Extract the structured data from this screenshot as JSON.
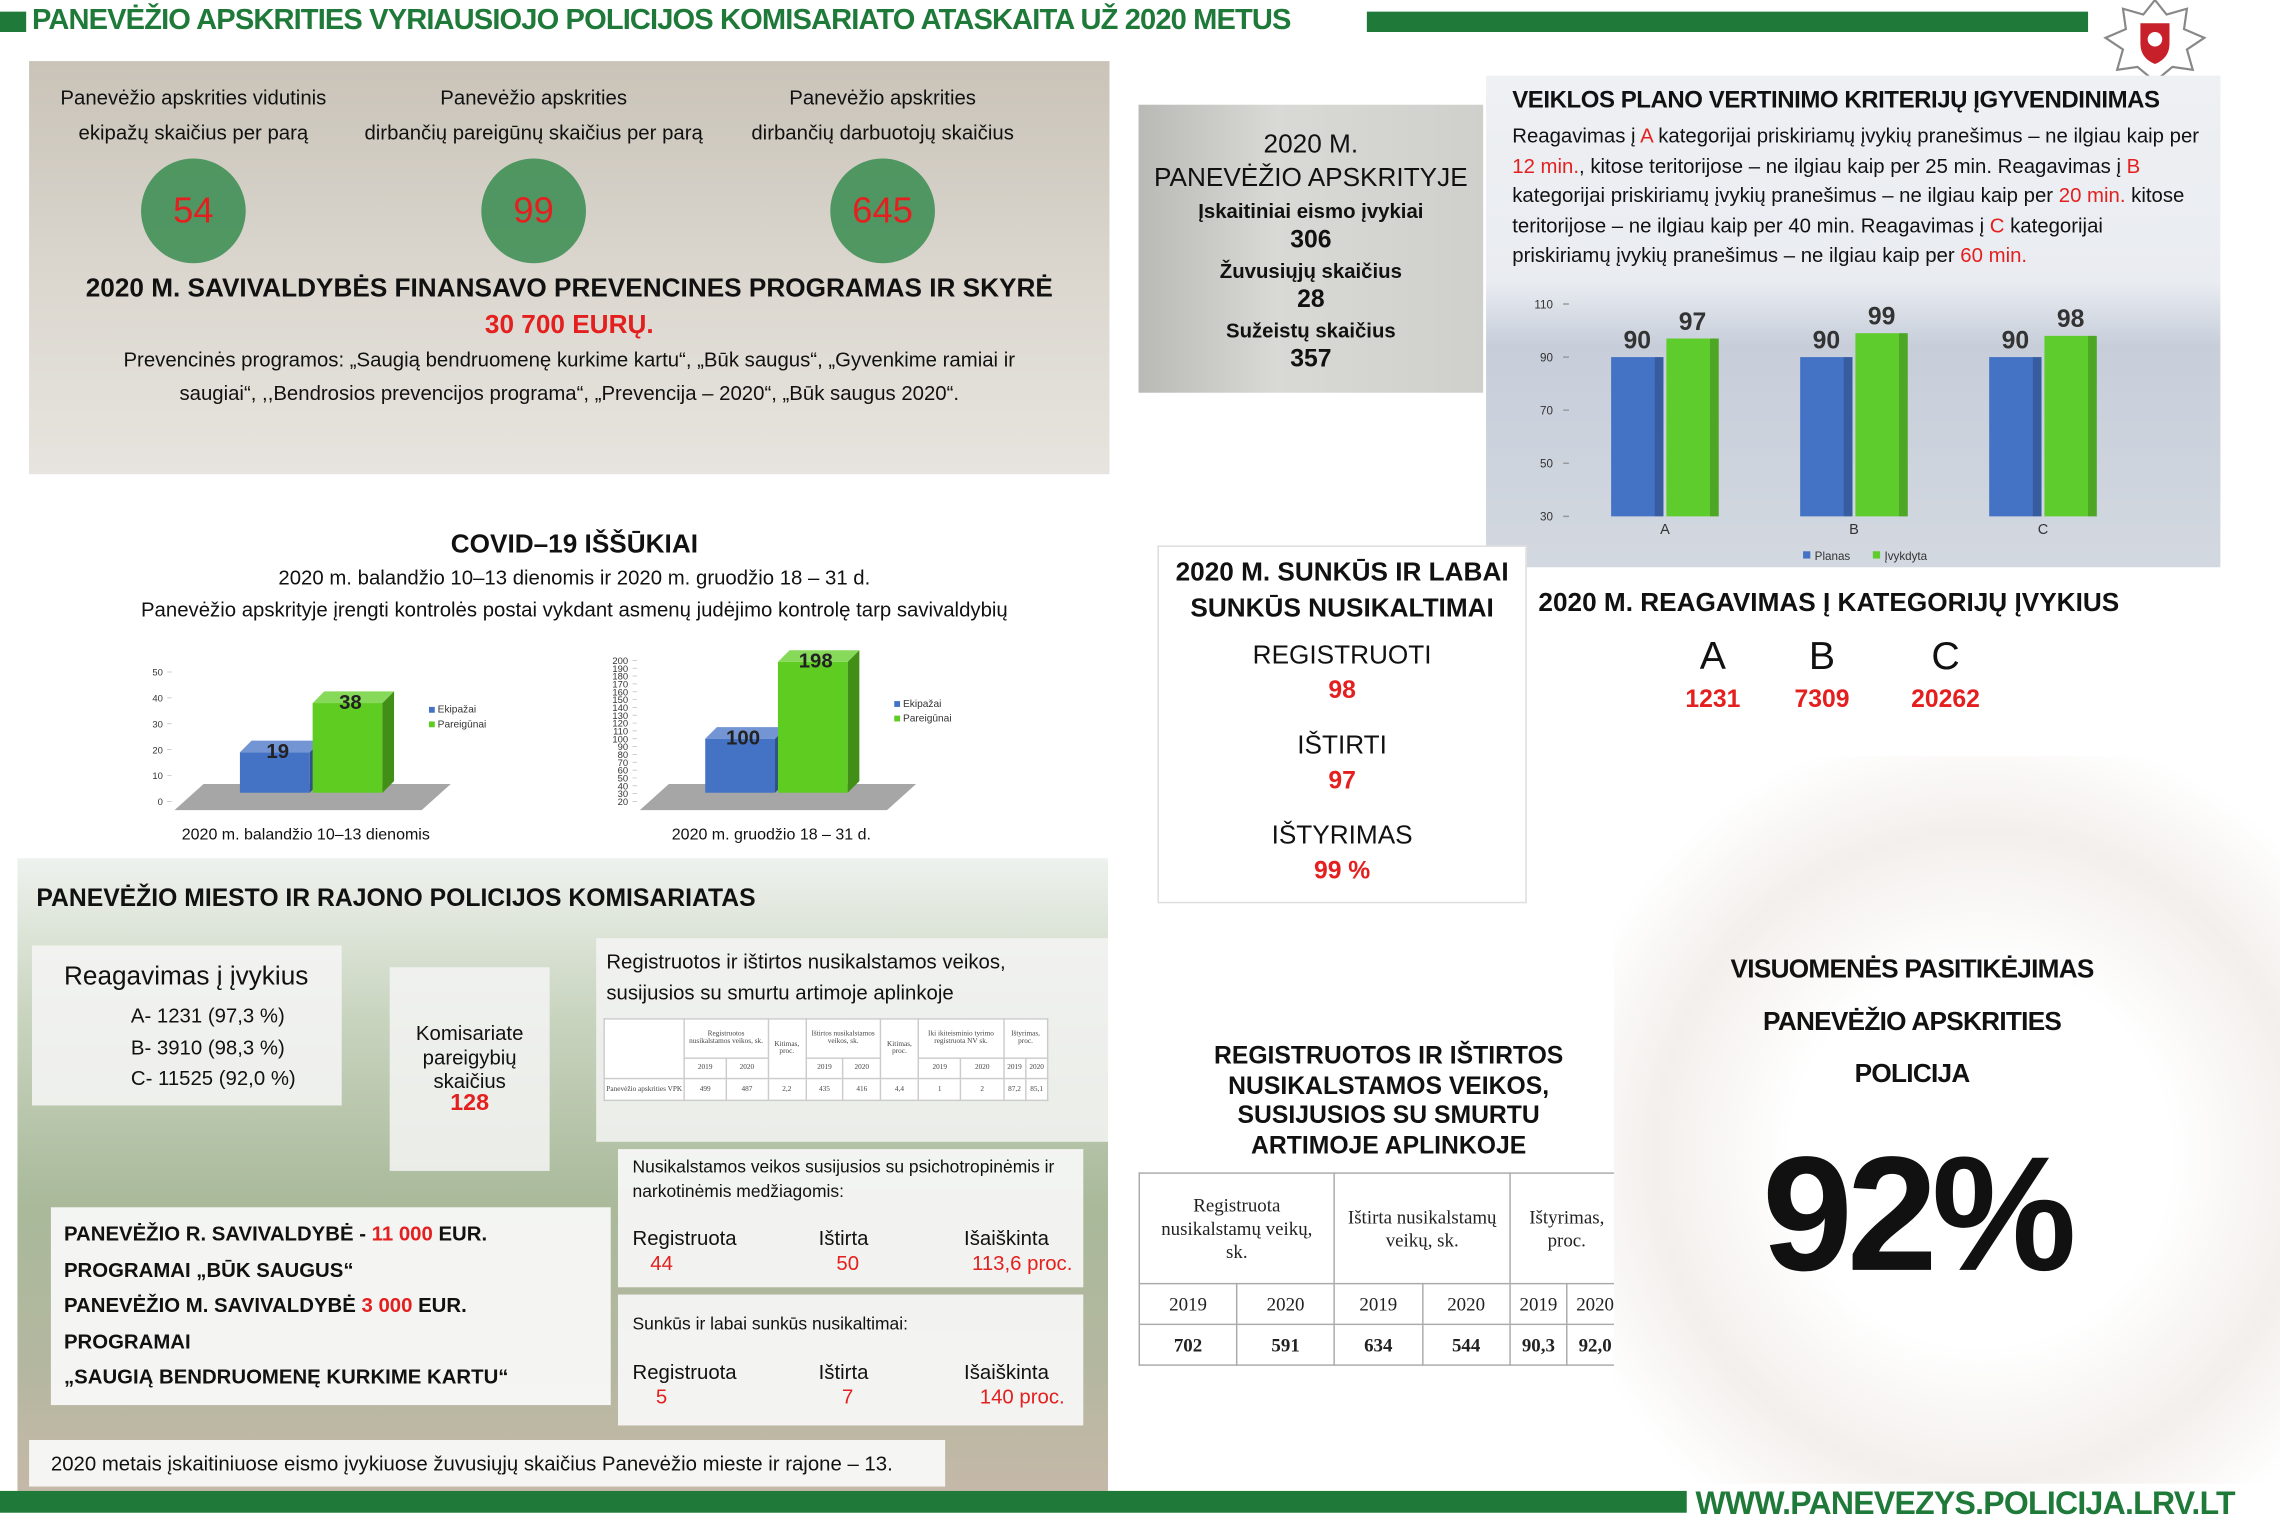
{
  "header": {
    "title": "PANEVĖŽIO APSKRITIES VYRIAUSIOJO POLICIJOS KOMISARIATO ATASKAITA UŽ 2020 METUS"
  },
  "stats": [
    {
      "label_lines": [
        "Panevėžio apskrities vidutinis",
        "ekipažų skaičius per parą"
      ],
      "value": "54"
    },
    {
      "label_lines": [
        "Panevėžio apskrities",
        "dirbančių pareigūnų skaičius per parą"
      ],
      "value": "99"
    },
    {
      "label_lines": [
        "Panevėžio apskrities",
        "dirbančių darbuotojų skaičius"
      ],
      "value": "645"
    }
  ],
  "funding": {
    "title": "2020 M. SAVIVALDYBĖS FINANSAVO PREVENCINES PROGRAMAS IR SKYRĖ",
    "amount": "30 700 EURŲ.",
    "programs": "Prevencinės programos: „Saugią bendruomenę kurkime kartu“, „Būk saugus“, „Gyvenkime ramiai ir saugiai“, ,,Bendrosios prevencijos programa“,  „Prevencija – 2020“, „Būk saugus 2020“."
  },
  "traffic": {
    "title_lines": [
      "2020 M.",
      "PANEVĖŽIO APSKRITYJE"
    ],
    "items": [
      {
        "label": "Įskaitiniai eismo įvykiai",
        "value": "306"
      },
      {
        "label": "Žuvusiųjų skaičius",
        "value": "28"
      },
      {
        "label": "Sužeistų skaičius",
        "value": "357"
      }
    ]
  },
  "criteria": {
    "title": "VEIKLOS PLANO VERTINIMO KRITERIJŲ ĮGYVENDINIMAS",
    "text": [
      {
        "text": "Reagavimas į "
      },
      {
        "text": "A",
        "highlight": true
      },
      {
        "text": " kategorijai priskiriamų įvykių pranešimus – ne ilgiau kaip per "
      },
      {
        "text": "12 min.",
        "highlight": true
      },
      {
        "text": ", kitose teritorijose – ne ilgiau kaip per 25 min. Reagavimas į "
      },
      {
        "text": "B",
        "highlight": true
      },
      {
        "text": " kategorijai priskiriamų įvykių pranešimus – ne ilgiau kaip per "
      },
      {
        "text": "20 min.",
        "highlight": true
      },
      {
        "text": " kitose teritorijose – ne ilgiau kaip per 40 min. Reagavimas į "
      },
      {
        "text": "C",
        "highlight": true
      },
      {
        "text": " kategorijai priskiriamų įvykių pranešimus – ne ilgiau kaip per "
      },
      {
        "text": "60 min.",
        "highlight": true
      }
    ],
    "chart": {
      "type": "bar",
      "categories": [
        "A",
        "B",
        "C"
      ],
      "series": [
        {
          "name": "Planas",
          "color": "#4472c4",
          "values": [
            90,
            90,
            90
          ]
        },
        {
          "name": "Įvykdyta",
          "color": "#5fcc2e",
          "values": [
            97,
            99,
            98
          ]
        }
      ],
      "ylim": [
        30,
        110
      ],
      "yticks": [
        30,
        50,
        70,
        90,
        110
      ]
    }
  },
  "reaction": {
    "title": "2020 M. REAGAVIMAS Į KATEGORIJŲ ĮVYKIUS",
    "items": [
      {
        "label": "A",
        "value": "1231"
      },
      {
        "label": "B",
        "value": "7309"
      },
      {
        "label": "C",
        "value": "20262"
      }
    ]
  },
  "serious": {
    "title_lines": [
      "2020 M. SUNKŪS IR LABAI",
      "SUNKŪS NUSIKALTIMAI"
    ],
    "items": [
      {
        "label": "REGISTRUOTI",
        "value": "98"
      },
      {
        "label": "IŠTIRTI",
        "value": "97"
      },
      {
        "label": "IŠTYRIMAS",
        "value": "99 %"
      }
    ]
  },
  "covid": {
    "title": "COVID–19 IŠŠŪKIAI",
    "subtitle_lines": [
      "2020 m. balandžio 10–13 dienomis ir 2020 m. gruodžio 18 – 31 d.",
      "Panevėžio apskrityje įrengti kontrolės postai vykdant asmenų judėjimo kontrolę tarp savivaldybių"
    ],
    "charts": [
      {
        "type": "bar",
        "three_d": true,
        "categories": [
          null
        ],
        "series": [
          {
            "name": "Ekipažai",
            "color": "#4472c4",
            "values": [
              19
            ]
          },
          {
            "name": "Pareigūnai",
            "color": "#5fcc22",
            "values": [
              38
            ]
          }
        ],
        "ylim": [
          0,
          50
        ],
        "yticks": [
          0,
          10,
          20,
          30,
          40,
          50
        ],
        "caption": "2020 m. balandžio 10–13 dienomis"
      },
      {
        "type": "bar",
        "three_d": true,
        "categories": [
          null
        ],
        "series": [
          {
            "name": "Ekipažai",
            "color": "#4472c4",
            "values": [
              100
            ]
          },
          {
            "name": "Pareigūnai",
            "color": "#5fcc22",
            "values": [
              198
            ]
          }
        ],
        "ylim": [
          20,
          200
        ],
        "yticks": [
          20,
          30,
          40,
          50,
          60,
          70,
          80,
          90,
          100,
          110,
          120,
          130,
          140,
          150,
          160,
          170,
          180,
          190,
          200
        ],
        "caption": "2020 m. gruodžio 18 – 31 d."
      }
    ]
  },
  "district": {
    "title": "PANEVĖŽIO MIESTO IR RAJONO POLICIJOS KOMISARIATAS",
    "response": {
      "title": "Reagavimas į įvykius",
      "lines": [
        "A- 1231 (97,3 %)",
        "B- 3910 (98,3 %)",
        "C- 11525 (92,0 %)"
      ]
    },
    "staff": {
      "label": "Komisariate pareigybių skaičius",
      "value": "128"
    },
    "violence": {
      "title": "Registruotos ir ištirtos nusikalstamos veikos, susijusios su smurtu artimoje aplinkoje",
      "table": {
        "headers": [
          "Registruotos nusikalstamos veikos, sk.",
          "Kitimas, proc.",
          "Ištirtos nusikalstamos veikos, sk.",
          "Kitimas, proc.",
          "Iki ikiteisminio tyrimo registruota NV sk.",
          "Ištyrimas, proc."
        ],
        "years": [
          "2019",
          "2020",
          "2019",
          "2020",
          "2019",
          "2020",
          "2019",
          "2020"
        ],
        "row_label": "Panevėžio apskrities VPK",
        "row": [
          "499",
          "487",
          "2,2",
          "435",
          "416",
          "4,4",
          "1",
          "2",
          "87,2",
          "85,1"
        ]
      }
    },
    "drugs": {
      "title": "Nusikalstamos veikos susijusios su psichotropinėmis ir narkotinėmis medžiagomis:",
      "items": [
        {
          "label": "Registruota",
          "value": "44"
        },
        {
          "label": "Ištirta",
          "value": "50"
        },
        {
          "label": "Išaiškinta",
          "value": "113,6 proc."
        }
      ]
    },
    "grave": {
      "title": "Sunkūs ir labai sunkūs nusikaltimai:",
      "items": [
        {
          "label": "Registruota",
          "value": "5"
        },
        {
          "label": "Ištirta",
          "value": "7"
        },
        {
          "label": "Išaiškinta",
          "value": "140 proc."
        }
      ]
    },
    "municipal_lines": [
      [
        {
          "text": "PANEVĖŽIO R. SAVIVALDYBĖ - "
        },
        {
          "text": "11 000",
          "highlight": true
        },
        {
          "text": " EUR."
        }
      ],
      [
        {
          "text": "PROGRAMAI  „BŪK SAUGUS“"
        }
      ],
      [
        {
          "text": "PANEVĖŽIO M. SAVIVALDYBĖ "
        },
        {
          "text": "3 000",
          "highlight": true
        },
        {
          "text": " EUR."
        }
      ],
      [
        {
          "text": "PROGRAMAI"
        }
      ],
      [
        {
          "text": "„SAUGIĄ BENDRUOMENĘ KURKIME KARTU“"
        }
      ]
    ],
    "note": "2020 metais įskaitiniuose eismo įvykiuose žuvusiųjų skaičius Panevėžio mieste ir  rajone – 13."
  },
  "violence_table": {
    "title": "REGISTRUOTOS IR IŠTIRTOS NUSIKALSTAMOS VEIKOS, SUSIJUSIOS SU SMURTU ARTIMOJE APLINKOJE",
    "headers": [
      "Registruota nusikalstamų veikų, sk.",
      "Ištirta nusikalstamų veikų, sk.",
      "Ištyrimas, proc."
    ],
    "years": [
      "2019",
      "2020",
      "2019",
      "2020",
      "2019",
      "2020"
    ],
    "values": [
      "702",
      "591",
      "634",
      "544",
      "90,3",
      "92,0"
    ]
  },
  "trust": {
    "title": "VISUOMENĖS PASITIKĖJIMAS PANEVĖŽIO APSKRITIES POLICIJA",
    "value": "92%"
  },
  "footer": {
    "url": "WWW.PANEVEZYS.POLICIJA.LRV.LT"
  }
}
